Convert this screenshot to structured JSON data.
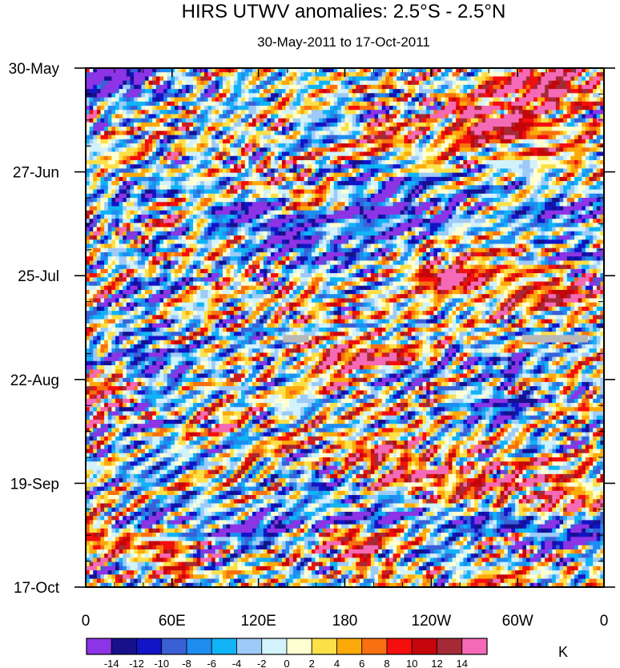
{
  "chart_data": {
    "type": "heatmap",
    "title": "HIRS UTWV anomalies: 2.5°S - 2.5°N",
    "subtitle": "30-May-2011 to 17-Oct-2011",
    "x_ticks": [
      "0",
      "60E",
      "120E",
      "180",
      "120W",
      "60W",
      "0"
    ],
    "x_tick_values": [
      0,
      60,
      120,
      180,
      240,
      300,
      360
    ],
    "x_range": [
      0,
      360
    ],
    "y_ticks": [
      "30-May",
      "27-Jun",
      "25-Jul",
      "22-Aug",
      "19-Sep",
      "17-Oct"
    ],
    "y_tick_days": [
      0,
      28,
      56,
      84,
      112,
      140
    ],
    "y_range_days": [
      0,
      140
    ],
    "colorbar": {
      "unit": "K",
      "levels": [
        -14,
        -12,
        -10,
        -8,
        -6,
        -4,
        -2,
        0,
        2,
        4,
        6,
        8,
        10,
        12,
        14
      ],
      "level_labels": [
        "-14",
        "-12",
        "-10",
        "-8",
        "-6",
        "-4",
        "-2",
        "0",
        "2",
        "4",
        "6",
        "8",
        "10",
        "12",
        "14"
      ],
      "colors": [
        "#8c34e6",
        "#16108c",
        "#1214c8",
        "#3a60d6",
        "#1e8cf0",
        "#10b4f6",
        "#9ecaf8",
        "#d2f2fc",
        "#ffffd2",
        "#fce048",
        "#fcaa0a",
        "#f87010",
        "#f40e0e",
        "#c4060a",
        "#a42a36",
        "#f46ab6"
      ]
    },
    "missing_data_color": "#b8b8b8",
    "features": [
      {
        "name": "positive band",
        "lon": [
          165,
          200
        ],
        "day": [
          82,
          88
        ],
        "value": 12
      },
      {
        "name": "positive band",
        "lon": [
          240,
          270
        ],
        "day": [
          55,
          60
        ],
        "value": 11
      },
      {
        "name": "positive band",
        "lon": [
          175,
          205
        ],
        "day": [
          128,
          134
        ],
        "value": 12
      },
      {
        "name": "positive band",
        "lon": [
          50,
          70
        ],
        "day": [
          130,
          136
        ],
        "value": 14
      },
      {
        "name": "positive band",
        "lon": [
          250,
          285
        ],
        "day": [
          10,
          14
        ],
        "value": 14
      },
      {
        "name": "negative band",
        "lon": [
          25,
          60
        ],
        "day": [
          60,
          110
        ],
        "value": -8
      },
      {
        "name": "negative band",
        "lon": [
          120,
          150
        ],
        "day": [
          40,
          48
        ],
        "value": -7
      },
      {
        "name": "missing data",
        "lon": [
          137,
          155
        ],
        "day": [
          72,
          74
        ]
      },
      {
        "name": "missing data",
        "lon": [
          303,
          349
        ],
        "day": [
          72,
          74
        ]
      }
    ]
  }
}
